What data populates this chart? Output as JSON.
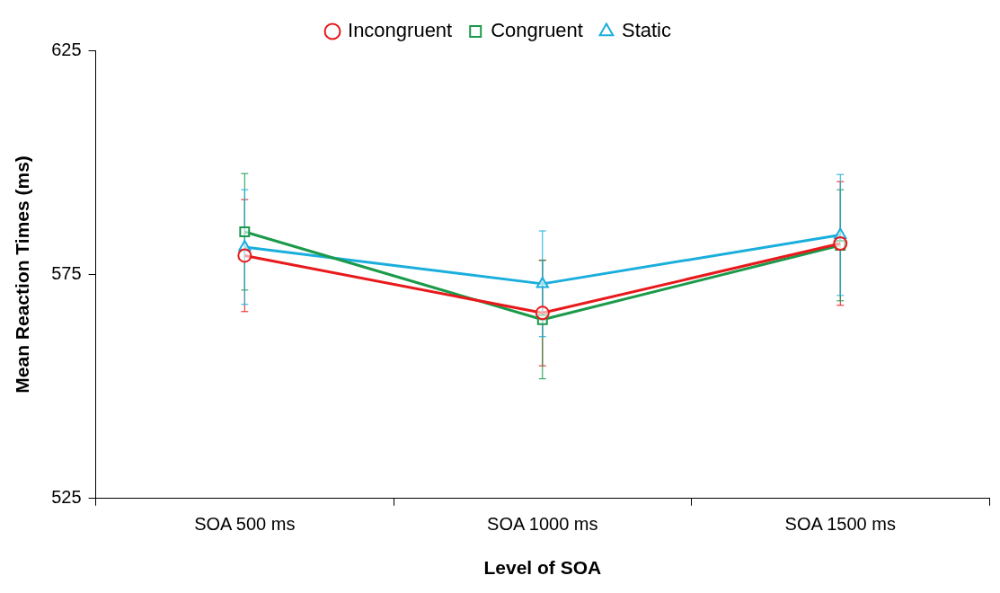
{
  "chart_data": {
    "type": "line",
    "xlabel": "Level of SOA",
    "ylabel": "Mean Reaction Times (ms)",
    "categories": [
      "SOA 500 ms",
      "SOA 1000 ms",
      "SOA 1500 ms"
    ],
    "series": [
      {
        "name": "Incongruent",
        "color": "#e8191c",
        "marker": "circle",
        "values": [
          579.2,
          566.4,
          581.9
        ],
        "errors": [
          12.5,
          11.8,
          13.8
        ]
      },
      {
        "name": "Congruent",
        "color": "#1a9a4a",
        "marker": "square",
        "values": [
          584.5,
          564.9,
          581.5
        ],
        "errors": [
          13,
          13.2,
          12.4
        ]
      },
      {
        "name": "Static",
        "color": "#1aaedc",
        "marker": "triangle",
        "values": [
          581.1,
          572.9,
          583.8
        ],
        "errors": [
          12.8,
          11.8,
          13.5
        ]
      }
    ],
    "ylim": [
      525,
      625
    ],
    "yticks": [
      525,
      575,
      625
    ],
    "grid": false,
    "legend": "top",
    "line_style": "solid"
  }
}
